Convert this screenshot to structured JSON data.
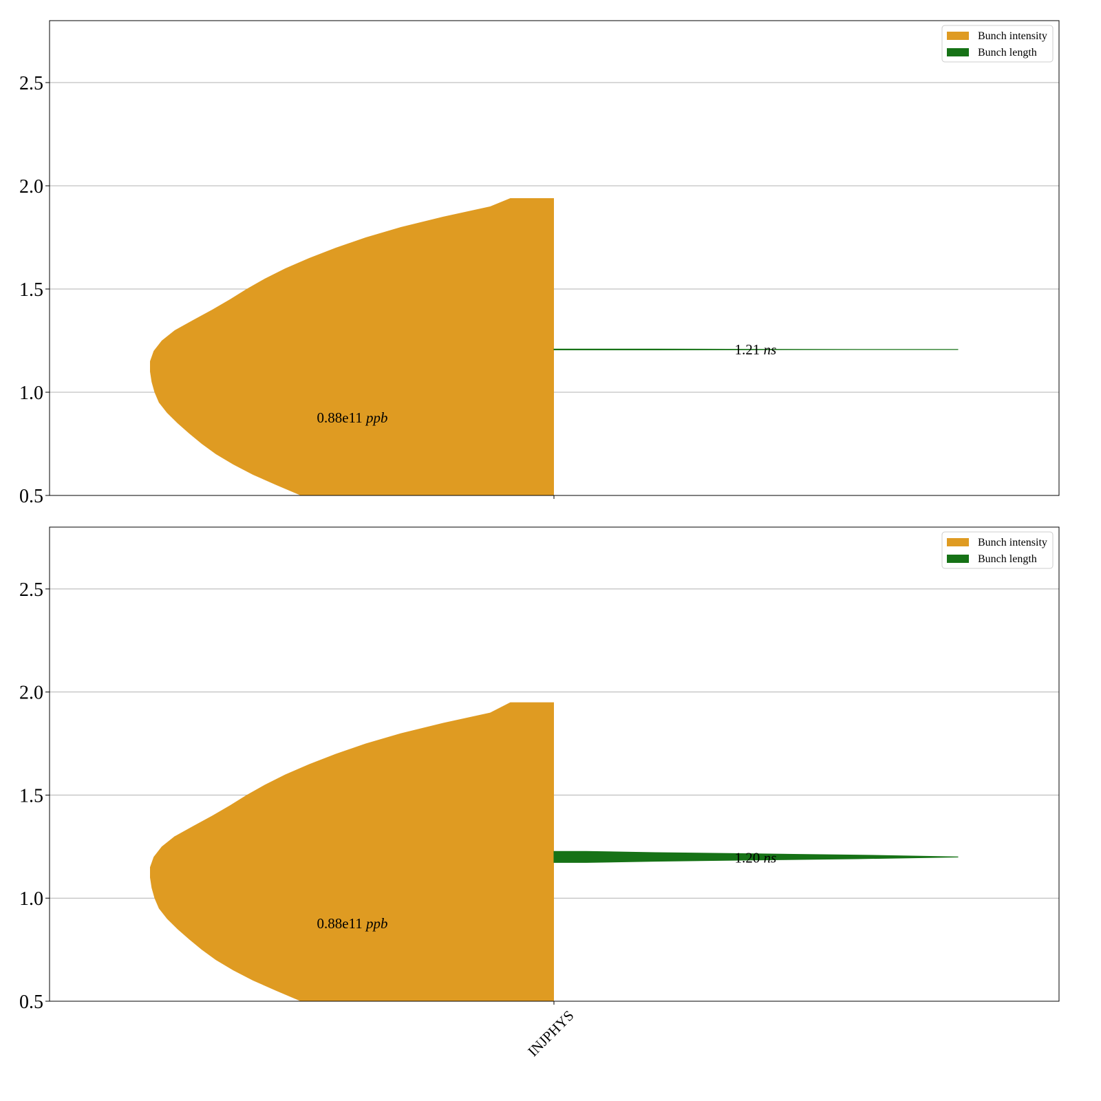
{
  "chart_data": [
    {
      "type": "violin",
      "ylim": [
        0.5,
        2.8
      ],
      "yticks": [
        0.5,
        1.0,
        1.5,
        2.0,
        2.5
      ],
      "ytick_labels": [
        "0.5",
        "1.0",
        "1.5",
        "2.0",
        "2.5"
      ],
      "grid": "horizontal",
      "legend_position": "top-right",
      "xtick_labels": [],
      "series": [
        {
          "name": "Bunch intensity",
          "color": "#df9b22",
          "side": "left",
          "x": "INJPHYS",
          "profile": [
            [
              0.5,
              0.627
            ],
            [
              0.55,
              0.687
            ],
            [
              0.6,
              0.745
            ],
            [
              0.65,
              0.794
            ],
            [
              0.7,
              0.837
            ],
            [
              0.75,
              0.872
            ],
            [
              0.8,
              0.903
            ],
            [
              0.85,
              0.932
            ],
            [
              0.9,
              0.958
            ],
            [
              0.95,
              0.978
            ],
            [
              1.0,
              0.989
            ],
            [
              1.05,
              0.996
            ],
            [
              1.1,
              1.0
            ],
            [
              1.15,
              1.0
            ],
            [
              1.2,
              0.991
            ],
            [
              1.25,
              0.971
            ],
            [
              1.3,
              0.939
            ],
            [
              1.35,
              0.893
            ],
            [
              1.4,
              0.846
            ],
            [
              1.45,
              0.802
            ],
            [
              1.5,
              0.761
            ],
            [
              1.55,
              0.716
            ],
            [
              1.6,
              0.665
            ],
            [
              1.65,
              0.606
            ],
            [
              1.7,
              0.54
            ],
            [
              1.75,
              0.466
            ],
            [
              1.8,
              0.379
            ],
            [
              1.85,
              0.275
            ],
            [
              1.9,
              0.158
            ],
            [
              1.94,
              0.108
            ]
          ],
          "label_value": "0.88e11",
          "label_unit": "ppb",
          "label_y": 0.88
        },
        {
          "name": "Bunch length",
          "color": "#167216",
          "side": "right",
          "x": "INJPHYS",
          "length": [
            [
              0.0,
              0.004
            ],
            [
              0.25,
              0.004
            ],
            [
              0.5,
              0.002
            ],
            [
              0.75,
              0.001
            ],
            [
              1.0,
              0.0005
            ]
          ],
          "center": 1.207,
          "label_value": "1.21",
          "label_unit": "ns",
          "label_y": 1.21
        }
      ]
    },
    {
      "type": "violin",
      "ylim": [
        0.5,
        2.8
      ],
      "yticks": [
        0.5,
        1.0,
        1.5,
        2.0,
        2.5
      ],
      "ytick_labels": [
        "0.5",
        "1.0",
        "1.5",
        "2.0",
        "2.5"
      ],
      "grid": "horizontal",
      "legend_position": "top-right",
      "xtick_labels": [
        "INJPHYS"
      ],
      "series": [
        {
          "name": "Bunch intensity",
          "color": "#df9b22",
          "side": "left",
          "x": "INJPHYS",
          "profile": [
            [
              0.5,
              0.627
            ],
            [
              0.55,
              0.687
            ],
            [
              0.6,
              0.745
            ],
            [
              0.65,
              0.794
            ],
            [
              0.7,
              0.837
            ],
            [
              0.75,
              0.872
            ],
            [
              0.8,
              0.903
            ],
            [
              0.85,
              0.932
            ],
            [
              0.9,
              0.958
            ],
            [
              0.95,
              0.978
            ],
            [
              1.0,
              0.989
            ],
            [
              1.05,
              0.996
            ],
            [
              1.1,
              1.0
            ],
            [
              1.15,
              1.0
            ],
            [
              1.2,
              0.991
            ],
            [
              1.25,
              0.971
            ],
            [
              1.3,
              0.939
            ],
            [
              1.35,
              0.893
            ],
            [
              1.4,
              0.846
            ],
            [
              1.45,
              0.802
            ],
            [
              1.5,
              0.761
            ],
            [
              1.55,
              0.716
            ],
            [
              1.6,
              0.665
            ],
            [
              1.65,
              0.606
            ],
            [
              1.7,
              0.54
            ],
            [
              1.75,
              0.466
            ],
            [
              1.8,
              0.379
            ],
            [
              1.85,
              0.275
            ],
            [
              1.9,
              0.158
            ],
            [
              1.95,
              0.108
            ]
          ],
          "label_value": "0.88e11",
          "label_unit": "ppb",
          "label_y": 0.88
        },
        {
          "name": "Bunch length",
          "color": "#167216",
          "side": "right",
          "x": "INJPHYS",
          "length": [
            [
              0.0,
              0.054
            ],
            [
              0.08,
              0.054
            ],
            [
              0.25,
              0.042
            ],
            [
              0.5,
              0.03
            ],
            [
              0.75,
              0.018
            ],
            [
              1.0,
              0.001
            ]
          ],
          "center": 1.2,
          "label_value": "1.20",
          "label_unit": "ns",
          "label_y": 1.2
        }
      ]
    }
  ]
}
